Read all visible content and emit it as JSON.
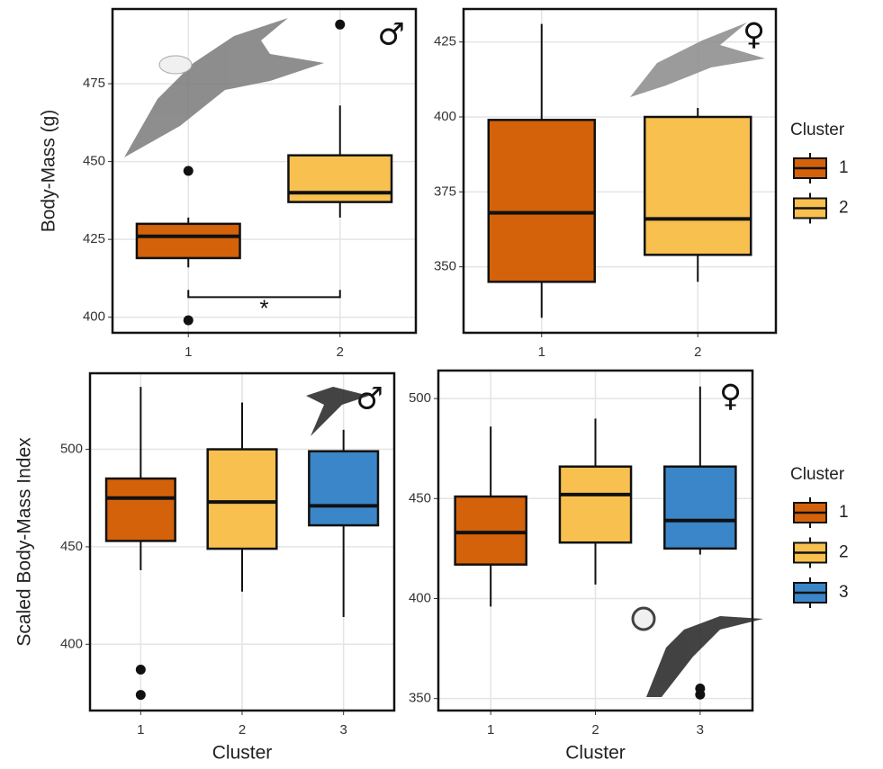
{
  "chart_data": [
    {
      "type": "box",
      "symbol": "♂",
      "ylabel": "Body-Mass (g)",
      "categories": [
        "1",
        "2"
      ],
      "ylim": [
        395,
        499
      ],
      "yticks": [
        400,
        425,
        450,
        475
      ],
      "grid": true,
      "significance": "*",
      "boxes": [
        {
          "color": "#d4620a",
          "whislo": 416,
          "q1": 419,
          "median": 426,
          "q3": 430,
          "whishi": 432,
          "fliers": [
            447,
            399
          ]
        },
        {
          "color": "#f7c04f",
          "whislo": 432,
          "q1": 437,
          "median": 440,
          "q3": 452,
          "whishi": 468,
          "fliers": [
            494
          ]
        }
      ]
    },
    {
      "type": "box",
      "symbol": "♀",
      "categories": [
        "1",
        "2"
      ],
      "ylim": [
        328,
        436
      ],
      "yticks": [
        350,
        375,
        400,
        425
      ],
      "grid": true,
      "legend": {
        "title": "Cluster",
        "labels": [
          "1",
          "2"
        ]
      },
      "boxes": [
        {
          "color": "#d4620a",
          "whislo": 333,
          "q1": 345,
          "median": 368,
          "q3": 399,
          "whishi": 431,
          "fliers": []
        },
        {
          "color": "#f7c04f",
          "whislo": 345,
          "q1": 354,
          "median": 366,
          "q3": 400,
          "whishi": 403,
          "fliers": []
        }
      ]
    },
    {
      "type": "box",
      "symbol": "♂",
      "ylabel": "Scaled Body-Mass Index",
      "xlabel": "Cluster",
      "categories": [
        "1",
        "2",
        "3"
      ],
      "ylim": [
        366,
        539
      ],
      "yticks": [
        400,
        450,
        500
      ],
      "grid": true,
      "boxes": [
        {
          "color": "#d4620a",
          "whislo": 438,
          "q1": 453,
          "median": 475,
          "q3": 485,
          "whishi": 532,
          "fliers": [
            387,
            374
          ]
        },
        {
          "color": "#f7c04f",
          "whislo": 427,
          "q1": 449,
          "median": 473,
          "q3": 500,
          "whishi": 524,
          "fliers": []
        },
        {
          "color": "#3a86c8",
          "whislo": 414,
          "q1": 461,
          "median": 471,
          "q3": 499,
          "whishi": 510,
          "fliers": []
        }
      ]
    },
    {
      "type": "box",
      "symbol": "♀",
      "xlabel": "Cluster",
      "categories": [
        "1",
        "2",
        "3"
      ],
      "ylim": [
        344,
        514
      ],
      "yticks": [
        350,
        400,
        450,
        500
      ],
      "grid": true,
      "legend": {
        "title": "Cluster",
        "labels": [
          "1",
          "2",
          "3"
        ]
      },
      "boxes": [
        {
          "color": "#d4620a",
          "whislo": 396,
          "q1": 417,
          "median": 433,
          "q3": 451,
          "whishi": 486,
          "fliers": []
        },
        {
          "color": "#f7c04f",
          "whislo": 407,
          "q1": 428,
          "median": 452,
          "q3": 466,
          "whishi": 490,
          "fliers": []
        },
        {
          "color": "#3a86c8",
          "whislo": 422,
          "q1": 425,
          "median": 439,
          "q3": 466,
          "whishi": 506,
          "fliers": [
            355,
            352
          ]
        }
      ]
    }
  ]
}
